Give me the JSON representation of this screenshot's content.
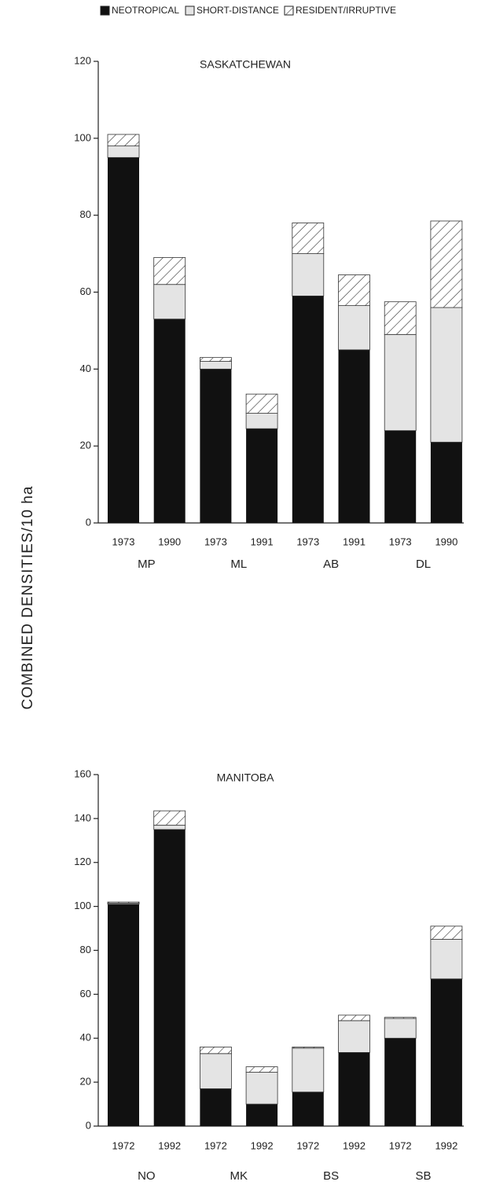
{
  "chart_data": [
    {
      "type": "bar",
      "stacked": true,
      "title": "SASKATCHEWAN",
      "ylabel": "COMBINED DENSITIES/10 ha",
      "categories": [
        "1973",
        "1990",
        "1973",
        "1991",
        "1973",
        "1991",
        "1973",
        "1990"
      ],
      "groups": [
        "MP",
        "ML",
        "AB",
        "DL"
      ],
      "series": [
        {
          "name": "NEOTROPICAL",
          "color": "#111111",
          "values": [
            95,
            53,
            40,
            24.5,
            59,
            45,
            24,
            21
          ]
        },
        {
          "name": "SHORT-DISTANCE",
          "color": "#e4e4e4",
          "values": [
            3,
            9,
            2,
            4,
            11,
            11.5,
            25,
            35
          ]
        },
        {
          "name": "RESIDENT/IRRUPTIVE",
          "color": "#ffffff",
          "pattern": "hatch",
          "values": [
            3,
            7,
            1,
            5,
            8,
            8,
            8.5,
            22.5
          ]
        }
      ],
      "ylim": [
        0,
        120
      ],
      "yticks": [
        0,
        20,
        40,
        60,
        80,
        100,
        120
      ]
    },
    {
      "type": "bar",
      "stacked": true,
      "title": "MANITOBA",
      "categories": [
        "1972",
        "1992",
        "1972",
        "1992",
        "1972",
        "1992",
        "1972",
        "1992"
      ],
      "groups": [
        "NO",
        "MK",
        "BS",
        "SB"
      ],
      "series": [
        {
          "name": "NEOTROPICAL",
          "color": "#111111",
          "values": [
            101,
            135,
            17,
            10,
            15.5,
            33.5,
            40,
            67
          ]
        },
        {
          "name": "SHORT-DISTANCE",
          "color": "#e4e4e4",
          "values": [
            0.5,
            2,
            16,
            14.5,
            20,
            14.5,
            9,
            18
          ]
        },
        {
          "name": "RESIDENT/IRRUPTIVE",
          "color": "#ffffff",
          "pattern": "hatch",
          "values": [
            0.5,
            6.5,
            3,
            2.5,
            0.5,
            2.5,
            0.5,
            6
          ]
        }
      ],
      "ylim": [
        0,
        160
      ],
      "yticks": [
        0,
        20,
        40,
        60,
        80,
        100,
        120,
        140,
        160
      ]
    }
  ]
}
